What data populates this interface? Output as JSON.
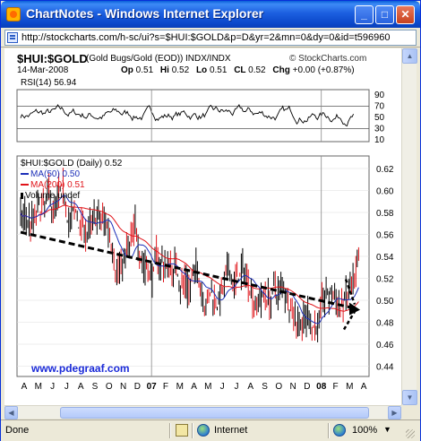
{
  "window": {
    "title": "ChartNotes - Windows Internet Explorer",
    "minimize_glyph": "_",
    "maximize_glyph": "□",
    "close_glyph": "✕"
  },
  "address_bar": {
    "url": "http://stockcharts.com/h-sc/ui?s=$HUI:$GOLD&p=D&yr=2&mn=0&dy=0&id=t596960"
  },
  "chart_header": {
    "symbol": "$HUI:$GOLD",
    "description": "(Gold Bugs/Gold (EOD))",
    "exchange": "INDX/INDX",
    "logo": "© StockCharts.com",
    "date": "14-Mar-2008",
    "op_label": "Op",
    "op_value": "0.51",
    "hi_label": "Hi",
    "hi_value": "0.52",
    "lo_label": "Lo",
    "lo_value": "0.51",
    "cl_label": "CL",
    "cl_value": "0.52",
    "chg_label": "Chg",
    "chg_value": "+0.00 (+0.87%)"
  },
  "rsi_panel": {
    "label": "RSI(14) 56.94",
    "ticks": [
      "90",
      "70",
      "50",
      "30",
      "10"
    ]
  },
  "price_panel": {
    "label": "$HUI:$GOLD (Daily) 0.52",
    "legend": [
      {
        "text": "MA(50) 0.50",
        "color": "#1c2fb8"
      },
      {
        "text": "MA(200) 0.51",
        "color": "#e0141a"
      },
      {
        "text": "Volume undef",
        "color": "#000000"
      }
    ],
    "y_ticks": [
      "0.62",
      "0.60",
      "0.58",
      "0.56",
      "0.54",
      "0.52",
      "0.50",
      "0.48",
      "0.46",
      "0.44"
    ]
  },
  "watermark": "www.pdegraaf.com",
  "chart_data": {
    "type": "bar",
    "x_labels": [
      "A",
      "M",
      "J",
      "J",
      "A",
      "S",
      "O",
      "N",
      "D",
      "07",
      "F",
      "M",
      "A",
      "M",
      "J",
      "J",
      "A",
      "S",
      "O",
      "N",
      "D",
      "08",
      "F",
      "M",
      "A"
    ],
    "ylim": [
      0.43,
      0.63
    ],
    "ma50_end": 0.5,
    "ma200_end": 0.51,
    "rsi_last": 56.94,
    "rsi_ylim": [
      0,
      100
    ],
    "trendline": {
      "start": 0.562,
      "end": 0.493
    },
    "colors": {
      "up": "#000000",
      "down": "#e0141a",
      "ma50": "#1c2fb8",
      "ma200": "#e0141a",
      "trend": "#000000"
    }
  },
  "status_bar": {
    "done": "Done",
    "zone": "Internet",
    "zoom": "100%",
    "zoom_arrow": "▼"
  },
  "scrollbar": {
    "up": "▲",
    "down": "▼",
    "left": "◀",
    "right": "▶"
  }
}
